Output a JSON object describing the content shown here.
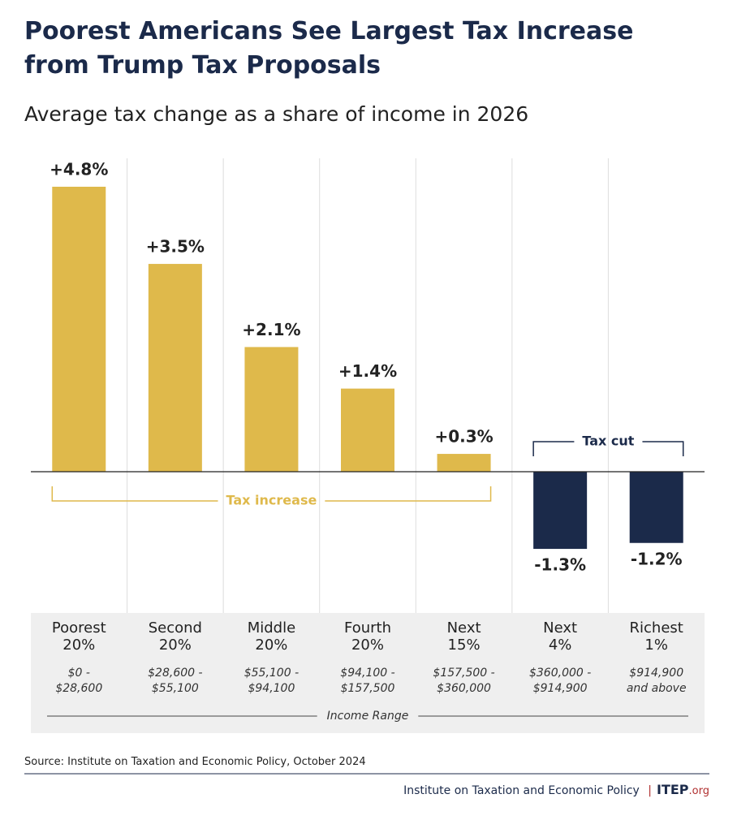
{
  "chart_data": {
    "type": "bar",
    "title": "Poorest Americans See Largest Tax Increase from Trump Tax Proposals",
    "subtitle": "Average tax change as a share of income in 2026",
    "categories": [
      "Poorest\n20%",
      "Second\n20%",
      "Middle\n20%",
      "Fourth\n20%",
      "Next\n15%",
      "Next\n4%",
      "Richest\n1%"
    ],
    "income_ranges": [
      "$0 -\n$28,600",
      "$28,600 -\n$55,100",
      "$55,100 -\n$94,100",
      "$94,100 -\n$157,500",
      "$157,500 -\n$360,000",
      "$360,000 -\n$914,900",
      "$914,900\nand above"
    ],
    "x_label": "Income Range",
    "values": [
      4.8,
      3.5,
      2.1,
      1.4,
      0.3,
      -1.3,
      -1.2
    ],
    "value_labels": [
      "+4.8%",
      "+3.5%",
      "+2.1%",
      "+1.4%",
      "+0.3%",
      "-1.3%",
      "-1.2%"
    ],
    "color_increase": "#dfb94b",
    "color_decrease": "#1b2a4a",
    "annotations": {
      "increase": "Tax increase",
      "decrease": "Tax cut"
    },
    "source": "Source: Institute on Taxation and Economic Policy, October 2024",
    "footer": {
      "org": "Institute on Taxation and Economic Policy",
      "logo": "ITEP",
      "logo_suffix": ".org"
    }
  }
}
